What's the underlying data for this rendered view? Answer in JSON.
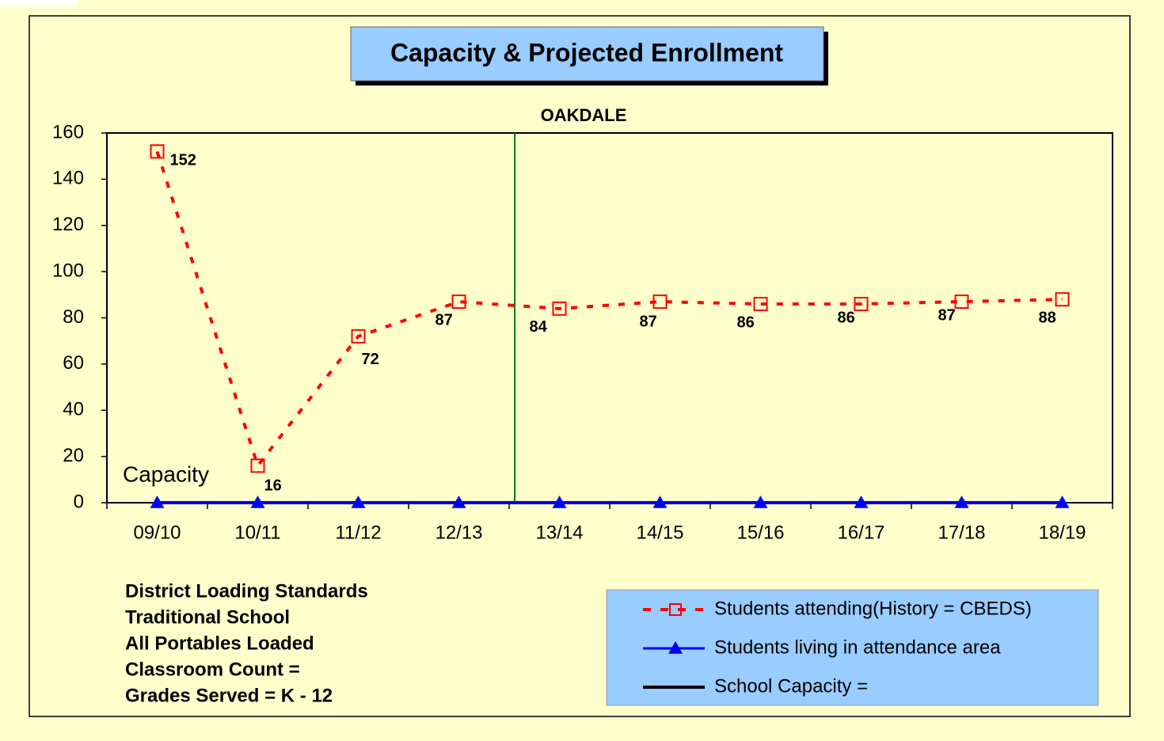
{
  "chart_data": {
    "type": "line",
    "title": "Capacity & Projected Enrollment",
    "subtitle": "OAKDALE",
    "annotation": "Capacity",
    "categories": [
      "09/10",
      "10/11",
      "11/12",
      "12/13",
      "13/14",
      "14/15",
      "15/16",
      "16/17",
      "17/18",
      "18/19"
    ],
    "series": [
      {
        "name": "Students attending(History = CBEDS)",
        "color": "#FF0000",
        "values": [
          152,
          16,
          72,
          87,
          84,
          87,
          86,
          86,
          87,
          88
        ]
      },
      {
        "name": "Students living in attendance area",
        "color": "#0000FF",
        "values": [
          0,
          0,
          0,
          0,
          0,
          0,
          0,
          0,
          0,
          0
        ]
      },
      {
        "name": "School Capacity =",
        "color": "#000000",
        "values": [
          0,
          0,
          0,
          0,
          0,
          0,
          0,
          0,
          0,
          0
        ]
      }
    ],
    "ylim": [
      0,
      160
    ],
    "yticks": [
      0,
      20,
      40,
      60,
      80,
      100,
      120,
      140,
      160
    ]
  },
  "notes": [
    "District Loading Standards",
    "Traditional School",
    "All Portables Loaded",
    "Classroom Count  =",
    "Grades Served = K - 12"
  ]
}
